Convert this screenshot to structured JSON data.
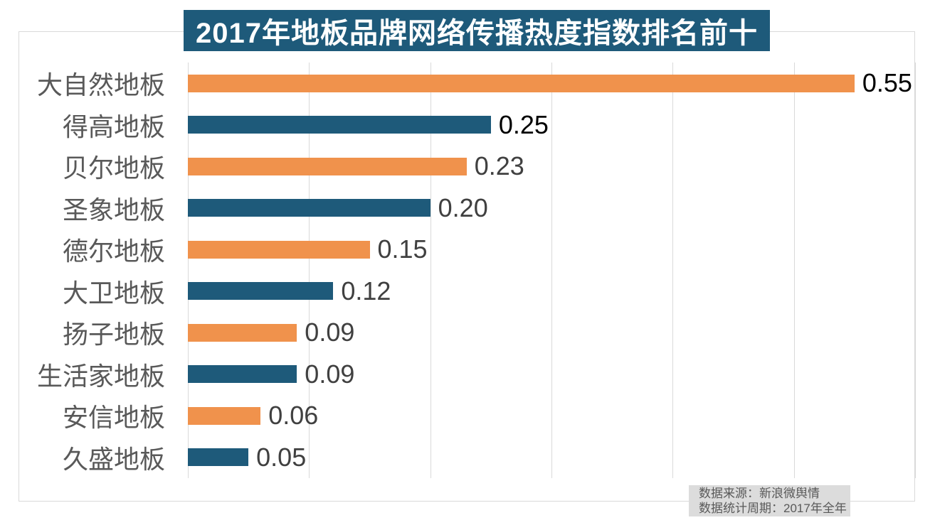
{
  "title": {
    "text": "2017年地板品牌网络传播热度指数排名前十",
    "bg_color": "#1e5a7a",
    "text_color": "#ffffff"
  },
  "chart_data": {
    "type": "bar",
    "orientation": "horizontal",
    "title": "2017年地板品牌网络传播热度指数排名前十",
    "xlim": [
      0,
      0.6
    ],
    "gridline_step": 0.1,
    "grid": "vertical-lines-only",
    "legend_position": "none",
    "axis_tick_labels": "none",
    "categories": [
      "大自然地板",
      "得高地板",
      "贝尔地板",
      "圣象地板",
      "德尔地板",
      "大卫地板",
      "扬子地板",
      "生活家地板",
      "安信地板",
      "久盛地板"
    ],
    "values": [
      0.55,
      0.25,
      0.23,
      0.2,
      0.15,
      0.12,
      0.09,
      0.09,
      0.06,
      0.05
    ],
    "items": [
      {
        "label": "大自然地板",
        "value": 0.55,
        "value_label": "0.55",
        "bar_color": "#f0924c",
        "value_color": "#000000"
      },
      {
        "label": "得高地板",
        "value": 0.25,
        "value_label": "0.25",
        "bar_color": "#1e5a7a",
        "value_color": "#000000"
      },
      {
        "label": "贝尔地板",
        "value": 0.23,
        "value_label": "0.23",
        "bar_color": "#f0924c",
        "value_color": "#404040"
      },
      {
        "label": "圣象地板",
        "value": 0.2,
        "value_label": "0.20",
        "bar_color": "#1e5a7a",
        "value_color": "#404040"
      },
      {
        "label": "德尔地板",
        "value": 0.15,
        "value_label": "0.15",
        "bar_color": "#f0924c",
        "value_color": "#404040"
      },
      {
        "label": "大卫地板",
        "value": 0.12,
        "value_label": "0.12",
        "bar_color": "#1e5a7a",
        "value_color": "#404040"
      },
      {
        "label": "扬子地板",
        "value": 0.09,
        "value_label": "0.09",
        "bar_color": "#f0924c",
        "value_color": "#404040"
      },
      {
        "label": "生活家地板",
        "value": 0.09,
        "value_label": "0.09",
        "bar_color": "#1e5a7a",
        "value_color": "#404040"
      },
      {
        "label": "安信地板",
        "value": 0.06,
        "value_label": "0.06",
        "bar_color": "#f0924c",
        "value_color": "#404040"
      },
      {
        "label": "久盛地板",
        "value": 0.05,
        "value_label": "0.05",
        "bar_color": "#1e5a7a",
        "value_color": "#404040"
      }
    ],
    "colors": {
      "orange_bar": "#f0924c",
      "blue_bar": "#1e5a7a",
      "gridline": "#d9d9d9",
      "frame_border": "#d9d9d9",
      "category_label": "#595959"
    }
  },
  "source": {
    "lines": [
      "数据来源：新浪微舆情",
      "数据统计周期：2017年全年"
    ],
    "bg_color": "#dcdcdc",
    "text_color": "#595959"
  }
}
